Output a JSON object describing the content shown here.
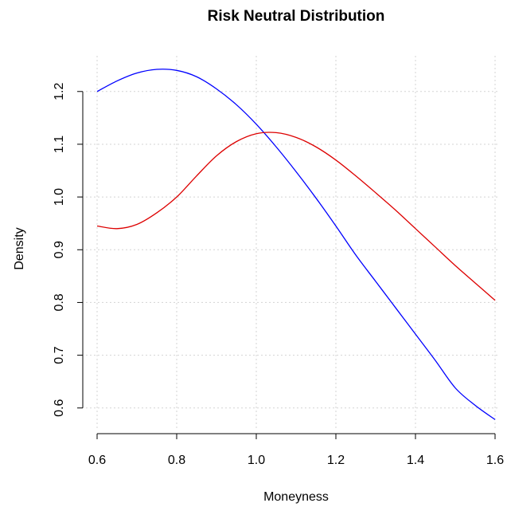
{
  "chart_data": {
    "type": "line",
    "title": "Risk Neutral Distribution",
    "xlabel": "Moneyness",
    "ylabel": "Density",
    "xlim": [
      0.6,
      1.6
    ],
    "ylim": [
      0.58,
      1.245
    ],
    "x_ticks": [
      "0.6",
      "0.8",
      "1.0",
      "1.2",
      "1.4",
      "1.6"
    ],
    "y_ticks": [
      "0.6",
      "0.7",
      "0.8",
      "0.9",
      "1.0",
      "1.1",
      "1.2"
    ],
    "grid": true,
    "series": [
      {
        "color": "#0000ff",
        "x": [
          0.6,
          0.65,
          0.7,
          0.75,
          0.8,
          0.85,
          0.9,
          0.95,
          1.0,
          1.05,
          1.1,
          1.15,
          1.2,
          1.25,
          1.3,
          1.35,
          1.4,
          1.45,
          1.5,
          1.55,
          1.6
        ],
        "values": [
          1.2,
          1.22,
          1.235,
          1.242,
          1.24,
          1.228,
          1.205,
          1.175,
          1.138,
          1.095,
          1.048,
          0.998,
          0.945,
          0.89,
          0.84,
          0.79,
          0.74,
          0.69,
          0.638,
          0.605,
          0.578
        ]
      },
      {
        "color": "#dd0000",
        "x": [
          0.6,
          0.65,
          0.7,
          0.75,
          0.8,
          0.85,
          0.9,
          0.95,
          1.0,
          1.05,
          1.1,
          1.15,
          1.2,
          1.25,
          1.3,
          1.35,
          1.4,
          1.45,
          1.5,
          1.55,
          1.6
        ],
        "values": [
          0.945,
          0.94,
          0.948,
          0.97,
          1.0,
          1.04,
          1.078,
          1.105,
          1.12,
          1.122,
          1.113,
          1.095,
          1.07,
          1.04,
          1.008,
          0.975,
          0.94,
          0.905,
          0.87,
          0.837,
          0.804
        ]
      }
    ]
  }
}
